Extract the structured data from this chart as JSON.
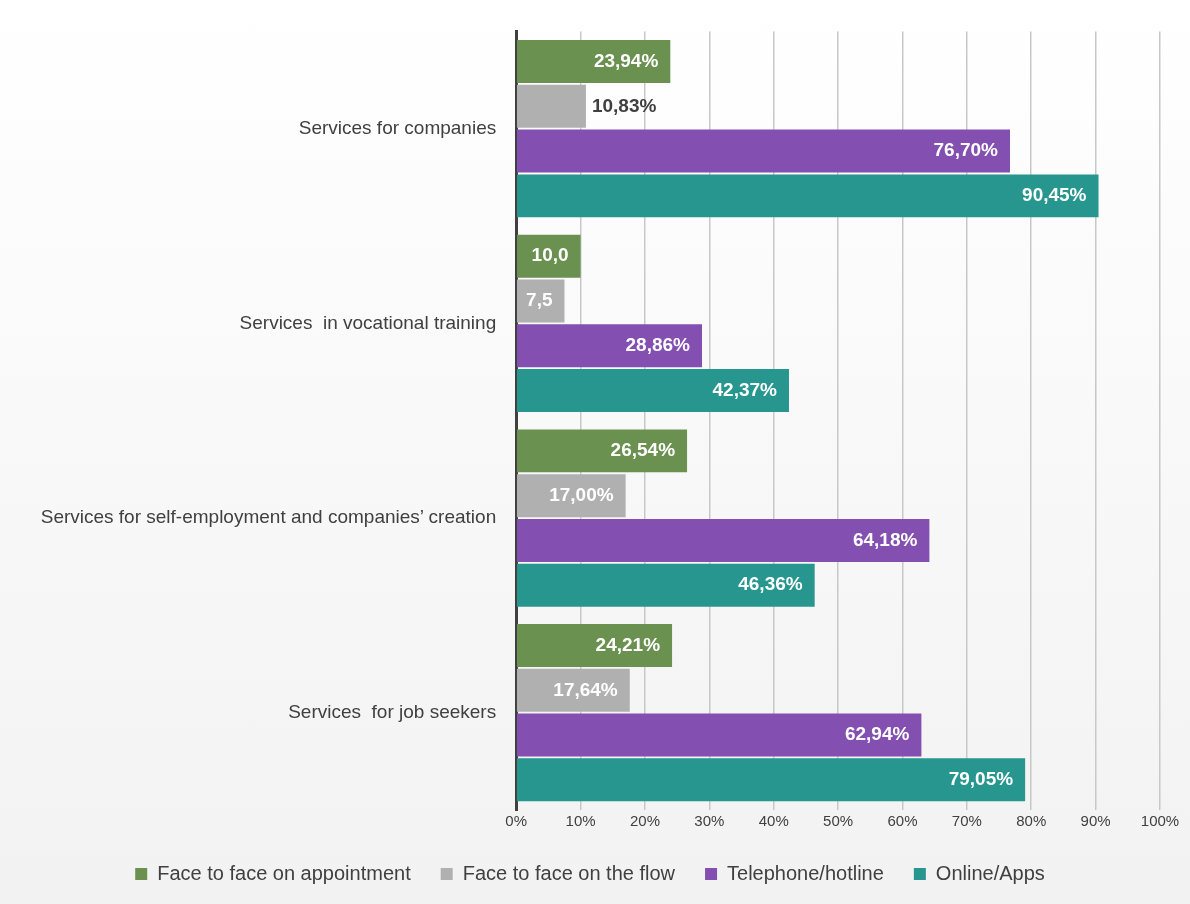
{
  "chart_data": {
    "type": "bar",
    "orientation": "horizontal",
    "categories": [
      "Services for companies",
      "Services  in vocational training",
      "Services for self-employment and companies’ creation",
      "Services  for job seekers"
    ],
    "series": [
      {
        "name": "Face to face on appointment",
        "color": "#6a9150",
        "values": [
          23.94,
          10.0,
          26.54,
          24.21
        ],
        "value_labels": [
          "23,94%",
          "10,0",
          "26,54%",
          "24,21%"
        ]
      },
      {
        "name": "Face to face on the flow",
        "color": "#b0b0b0",
        "values": [
          10.83,
          7.5,
          17.0,
          17.64
        ],
        "value_labels": [
          "10,83%",
          "7,5",
          "17,00%",
          "17,64%"
        ]
      },
      {
        "name": "Telephone/hotline",
        "color": "#834fb0",
        "values": [
          76.7,
          28.86,
          64.18,
          62.94
        ],
        "value_labels": [
          "76,70%",
          "28,86%",
          "64,18%",
          "62,94%"
        ]
      },
      {
        "name": "Online/Apps",
        "color": "#26968f",
        "values": [
          90.45,
          42.37,
          46.36,
          79.05
        ],
        "value_labels": [
          "90,45%",
          "42,37%",
          "46,36%",
          "79,05%"
        ]
      }
    ],
    "xlim": [
      0,
      100
    ],
    "xticks": [
      {
        "value": 0,
        "label": "0%"
      },
      {
        "value": 10,
        "label": "10%"
      },
      {
        "value": 20,
        "label": "20%"
      },
      {
        "value": 30,
        "label": "30%"
      },
      {
        "value": 40,
        "label": "40%"
      },
      {
        "value": 50,
        "label": "50%"
      },
      {
        "value": 60,
        "label": "60%"
      },
      {
        "value": 70,
        "label": "70%"
      },
      {
        "value": 80,
        "label": "80%"
      },
      {
        "value": 90,
        "label": "90%"
      },
      {
        "value": 100,
        "label": "100%"
      }
    ],
    "grid": "x",
    "legend": "bottom"
  }
}
